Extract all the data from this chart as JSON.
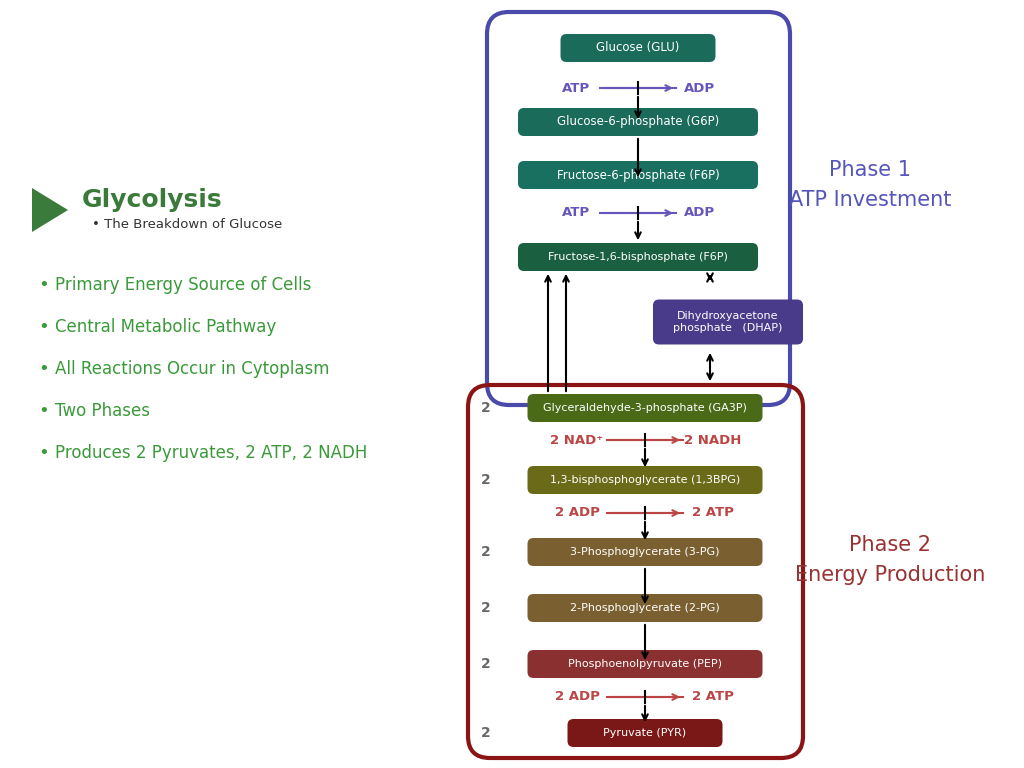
{
  "bg_color": "#ffffff",
  "title_color": "#3a7a3a",
  "bullet_color": "#3a9a3a",
  "title_text": "Glycolysis",
  "subtitle_text": "The Breakdown of Glucose",
  "bullets": [
    "Primary Energy Source of Cells",
    "Central Metabolic Pathway",
    "All Reactions Occur in Cytoplasm",
    "Two Phases",
    "Produces 2 Pyruvates, 2 ATP, 2 NADH"
  ],
  "phase1_border": "#4a4aaa",
  "phase2_border": "#8b1515",
  "phase1_label": "Phase 1\nATP Investment",
  "phase2_label": "Phase 2\nEnergy Production",
  "phase_label_color1": "#5555bb",
  "phase_label_color2": "#993333",
  "box_glu_color": "#1a6b5a",
  "box_g6p_color": "#1a6b5a",
  "box_f6p_color": "#1a7060",
  "box_f16p_color": "#1a6040",
  "box_dhap_color": "#4a3a8a",
  "box_ga3p_color": "#4a6a18",
  "box_13bpg_color": "#6a6a18",
  "box_3pg_color": "#7a6030",
  "box_2pg_color": "#7a6030",
  "box_pep_color": "#8a3030",
  "box_pyr_color": "#7a1818",
  "atp_adp_color1": "#6655bb",
  "atp_adp_color2": "#bb4444",
  "num_color": "#666666"
}
